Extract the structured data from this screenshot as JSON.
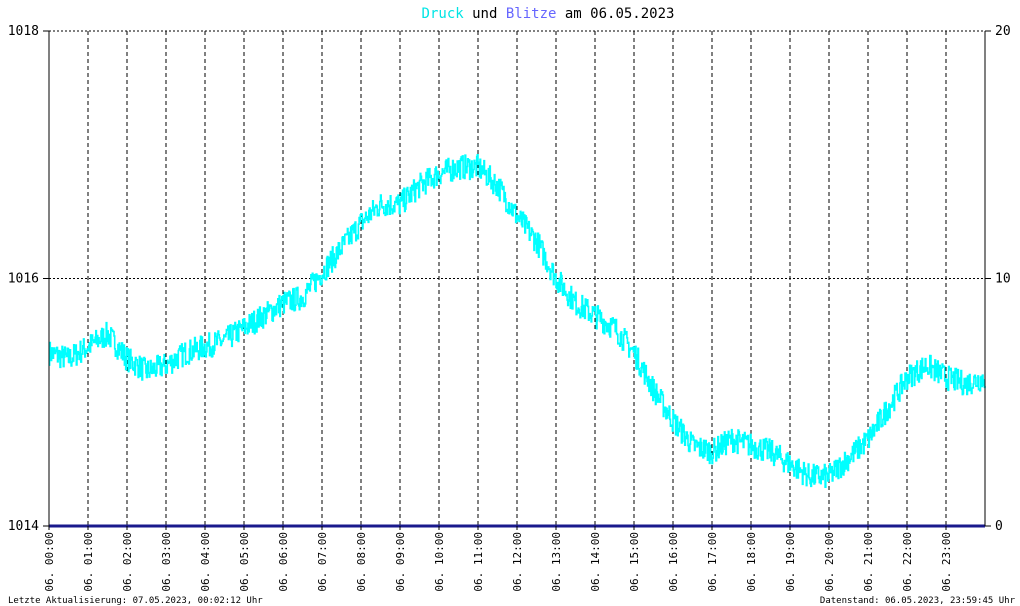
{
  "title": {
    "parts": [
      {
        "text": "Druck",
        "color": "#00e5e5"
      },
      {
        "text": " und ",
        "color": "#000000"
      },
      {
        "text": "Blitze",
        "color": "#6666ff"
      },
      {
        "text": " am 06.05.2023",
        "color": "#000000"
      }
    ]
  },
  "footer": {
    "left": "Letzte Aktualisierung: 07.05.2023, 00:02:12 Uhr",
    "right": "Datenstand: 06.05.2023, 23:59:45 Uhr"
  },
  "chart_data": {
    "type": "line",
    "title": "Druck und Blitze am 06.05.2023",
    "x_unit": "hour",
    "xlim": [
      0,
      24
    ],
    "x_tick_labels": [
      "06. 00:00",
      "06. 01:00",
      "06. 02:00",
      "06. 03:00",
      "06. 04:00",
      "06. 05:00",
      "06. 06:00",
      "06. 07:00",
      "06. 08:00",
      "06. 09:00",
      "06. 10:00",
      "06. 11:00",
      "06. 12:00",
      "06. 13:00",
      "06. 14:00",
      "06. 15:00",
      "06. 16:00",
      "06. 17:00",
      "06. 18:00",
      "06. 19:00",
      "06. 20:00",
      "06. 21:00",
      "06. 22:00",
      "06. 23:00"
    ],
    "y_left": {
      "min": 1014,
      "max": 1018,
      "ticks": [
        "1014",
        "1016",
        "1018"
      ]
    },
    "y_right": {
      "min": 0,
      "max": 20,
      "ticks": [
        "0",
        "10",
        "20"
      ]
    },
    "grid": true,
    "series": [
      {
        "name": "Druck",
        "color": "#00ffff",
        "axis": "left",
        "noise": 0.1,
        "x": [
          0,
          0.5,
          1,
          1.5,
          2,
          2.5,
          3,
          3.5,
          4,
          4.5,
          5,
          5.5,
          6,
          6.5,
          7,
          7.5,
          8,
          8.5,
          9,
          9.5,
          10,
          10.5,
          11,
          11.5,
          12,
          12.5,
          13,
          13.5,
          14,
          14.5,
          15,
          15.5,
          16,
          16.5,
          17,
          17.5,
          18,
          18.5,
          19,
          19.5,
          20,
          20.5,
          21,
          21.5,
          22,
          22.5,
          23,
          23.5,
          24
        ],
        "y": [
          1015.4,
          1015.35,
          1015.45,
          1015.55,
          1015.35,
          1015.25,
          1015.3,
          1015.4,
          1015.45,
          1015.5,
          1015.6,
          1015.7,
          1015.8,
          1015.85,
          1016.05,
          1016.25,
          1016.45,
          1016.6,
          1016.6,
          1016.75,
          1016.85,
          1016.9,
          1016.9,
          1016.75,
          1016.5,
          1016.3,
          1016.0,
          1015.8,
          1015.7,
          1015.6,
          1015.4,
          1015.1,
          1014.85,
          1014.65,
          1014.6,
          1014.7,
          1014.65,
          1014.6,
          1014.5,
          1014.4,
          1014.4,
          1014.55,
          1014.7,
          1014.95,
          1015.2,
          1015.3,
          1015.2,
          1015.15,
          1015.2
        ]
      },
      {
        "name": "Blitze",
        "color": "#1a1a8c",
        "axis": "right",
        "x": [
          0,
          24
        ],
        "y": [
          0,
          0
        ]
      }
    ]
  }
}
